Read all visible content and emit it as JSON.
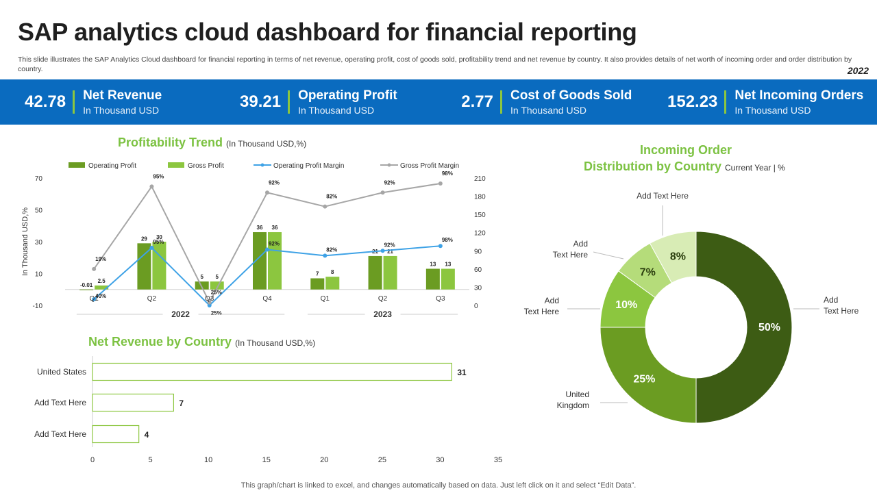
{
  "header": {
    "title": "SAP analytics cloud dashboard for financial reporting",
    "description": "This slide illustrates the SAP Analytics Cloud dashboard for financial reporting in terms of net revenue, operating profit, cost of goods sold, profitability trend and net revenue by country. It also provides details of net worth of incoming order and order distribution by country.",
    "year": "2022"
  },
  "kpis": [
    {
      "value": "42.78",
      "label": "Net Revenue",
      "unit": "In Thousand USD"
    },
    {
      "value": "39.21",
      "label": "Operating Profit",
      "unit": "In Thousand USD"
    },
    {
      "value": "2.77",
      "label": "Cost of Goods Sold",
      "unit": "In Thousand USD"
    },
    {
      "value": "152.23",
      "label": "Net Incoming Orders",
      "unit": "In Thousand USD"
    }
  ],
  "colors": {
    "band": "#0a6bbf",
    "accent": "#8cc63f",
    "dark_green": "#6b9c22",
    "light_green": "#8cc63f",
    "line_blue": "#3ea2e6",
    "line_gray": "#a6a6a6"
  },
  "profitability": {
    "title": "Profitability Trend",
    "subtitle": "(In Thousand  USD,%)"
  },
  "revenue_country": {
    "title": "Net Revenue by Country",
    "subtitle": "(In Thousand  USD,%)"
  },
  "donut": {
    "title_line1": "Incoming Order",
    "title_line2": "Distribution by Country",
    "subtitle": "Current  Year | %"
  },
  "footer": {
    "note": "This graph/chart is linked to excel,  and changes automatically based on data. Just left click on it and select “Edit Data”."
  },
  "chart_data": [
    {
      "type": "bar",
      "title": "Profitability Trend",
      "categories": [
        "Q1",
        "Q2",
        "Q3",
        "Q4",
        "Q1",
        "Q2",
        "Q3"
      ],
      "groups": [
        {
          "label": "2022",
          "categories": [
            "Q1",
            "Q2",
            "Q3",
            "Q4"
          ]
        },
        {
          "label": "2023",
          "categories": [
            "Q1",
            "Q2",
            "Q3"
          ]
        }
      ],
      "series": [
        {
          "name": "Operating Profit",
          "kind": "bar",
          "axis": "left",
          "values": [
            -0.01,
            29,
            5,
            36,
            7,
            21,
            13
          ],
          "labels": [
            "-0.01",
            "29",
            "5",
            "36",
            "7",
            "21",
            "13"
          ]
        },
        {
          "name": "Gross Profit",
          "kind": "bar",
          "axis": "left",
          "values": [
            2.5,
            30,
            5,
            36,
            8,
            21,
            13
          ],
          "labels": [
            "2.5",
            "30",
            "5",
            "36",
            "8",
            "21",
            "13"
          ]
        },
        {
          "name": "Operating Profit Margin",
          "kind": "line",
          "axis": "right",
          "values": [
            40,
            95,
            25,
            92,
            82,
            92,
            98
          ],
          "labels": [
            "40%",
            "95%",
            "25%",
            "92%",
            "82%",
            "92%",
            "98%"
          ],
          "plot_values": [
            10,
            95,
            0,
            92,
            82,
            90,
            98
          ]
        },
        {
          "name": "Gross Profit Margin",
          "kind": "line",
          "axis": "right",
          "values": [
            19,
            95,
            25,
            92,
            82,
            92,
            98
          ],
          "labels": [
            "19%",
            "95%",
            "25%",
            "92%",
            "82%",
            "92%",
            "98%"
          ],
          "plot_values": [
            60,
            196,
            5,
            186,
            163,
            186,
            201
          ]
        }
      ],
      "ylabel": "In Thousand USD,%",
      "ylim": [
        -10,
        70
      ],
      "yticks": [
        "70",
        "50",
        "30",
        "10",
        "-10"
      ],
      "y2lim": [
        0,
        210
      ],
      "y2ticks": [
        "210",
        "180",
        "150",
        "120",
        "90",
        "60",
        "30",
        "0"
      ]
    },
    {
      "type": "bar",
      "orientation": "horizontal",
      "title": "Net Revenue by Country",
      "categories": [
        "United States",
        "Add Text Here",
        "Add Text Here"
      ],
      "values": [
        31,
        7,
        4
      ],
      "xlim": [
        0,
        35
      ],
      "xticks": [
        "0",
        "5",
        "10",
        "15",
        "20",
        "25",
        "30",
        "35"
      ]
    },
    {
      "type": "pie",
      "title": "Incoming Order Distribution by Country",
      "slices": [
        {
          "label": "Add Text Here",
          "value": 50,
          "text": "50%",
          "color": "#3d5c14"
        },
        {
          "label": "United Kingdom",
          "value": 25,
          "text": "25%",
          "color": "#6b9c22"
        },
        {
          "label": "Add Text Here",
          "value": 10,
          "text": "10%",
          "color": "#8cc63f"
        },
        {
          "label": "Add Text Here",
          "value": 7,
          "text": "7%",
          "color": "#b5dc7a"
        },
        {
          "label": "Add Text Here",
          "value": 8,
          "text": "8%",
          "color": "#d8ecb5"
        }
      ],
      "callouts": [
        "Add Text Here",
        "United Kingdom",
        "Add Text Here",
        "Add Text Here",
        "Add Text Here"
      ]
    }
  ]
}
